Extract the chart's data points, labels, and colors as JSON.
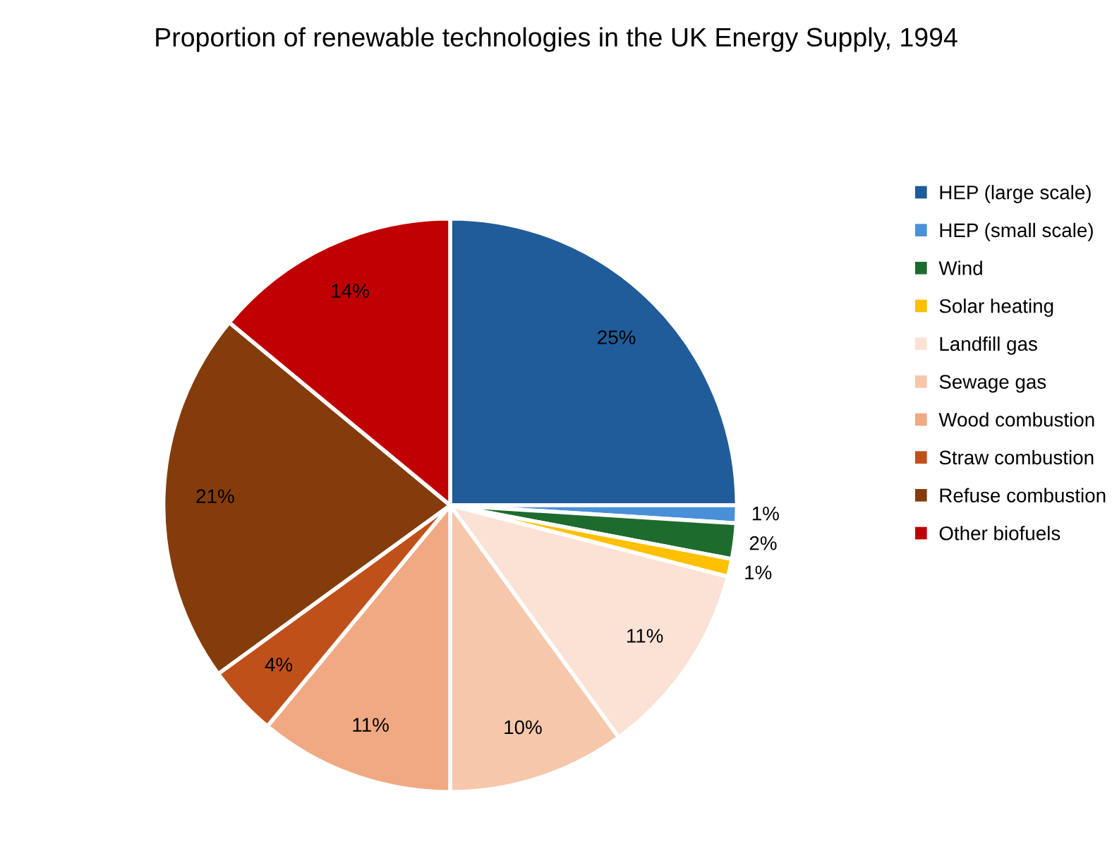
{
  "chart_data": {
    "type": "pie",
    "title": "Proportion of renewable technologies in the UK Energy Supply, 1994",
    "categories": [
      "HEP (large scale)",
      "HEP (small scale)",
      "Wind",
      "Solar heating",
      "Landfill gas",
      "Sewage gas",
      "Wood combustion",
      "Straw combustion",
      "Refuse combustion",
      "Other biofuels"
    ],
    "values": [
      25,
      1,
      2,
      1,
      11,
      10,
      11,
      4,
      21,
      14
    ],
    "colors": [
      "#1f5c99",
      "#4a90d9",
      "#1e6b2e",
      "#ffc000",
      "#fbe2d5",
      "#f7c7ac",
      "#f1a983",
      "#c0501a",
      "#843c0c",
      "#c00000"
    ],
    "value_labels": [
      "25%",
      "1%",
      "2%",
      "1%",
      "11%",
      "10%",
      "11%",
      "4%",
      "21%",
      "14%"
    ],
    "legend": "right"
  }
}
